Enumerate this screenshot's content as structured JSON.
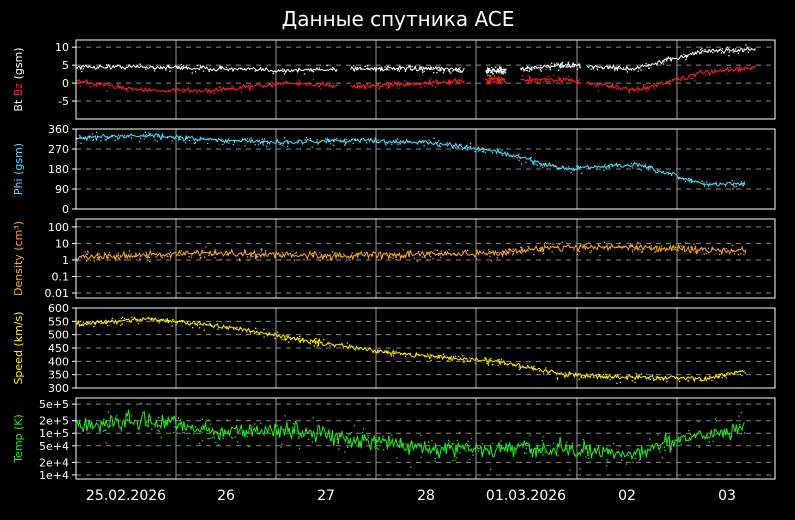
{
  "chart_data": {
    "type": "line",
    "title": "Данные спутника ACE",
    "background": "#000000",
    "grid": true,
    "x_tick_labels": [
      "25.02.2026",
      "26",
      "27",
      "28",
      "01.03.2026",
      "02",
      "03"
    ],
    "panels": [
      {
        "id": "bt-bz",
        "ylabel_parts": [
          {
            "text": "Bt",
            "color": "#ffffff"
          },
          {
            "text": " Bz",
            "color": "#ff2020"
          },
          {
            "text": " (gsm)",
            "color": "#ffffff"
          }
        ],
        "scale": "linear",
        "ylim": [
          -10,
          12
        ],
        "yticks": [
          10,
          5,
          0,
          -5
        ],
        "ytick_labels": [
          "10",
          "5",
          "0",
          "-5"
        ],
        "series": [
          {
            "label": "Bt",
            "color": "#ffffff",
            "approx_values": [
              4.5,
              4.5,
              4.0,
              3.5,
              4.0,
              4.0,
              3.5,
              5.0,
              4.0,
              9.0,
              9.5
            ]
          },
          {
            "label": "Bz",
            "color": "#ff2020",
            "approx_values": [
              0.5,
              -2.0,
              -2.0,
              0.0,
              -1.0,
              0.0,
              1.0,
              1.0,
              -2.0,
              3.0,
              5.0
            ]
          }
        ],
        "segments": [
          [
            0.0,
            2.62
          ],
          [
            2.75,
            3.9
          ],
          [
            4.1,
            4.3
          ],
          [
            4.45,
            5.05
          ],
          [
            5.12,
            6.8
          ]
        ]
      },
      {
        "id": "phi",
        "ylabel_parts": [
          {
            "text": "Phi (gsm)",
            "color": "#55ddff"
          }
        ],
        "scale": "linear",
        "ylim": [
          0,
          360
        ],
        "yticks": [
          360,
          270,
          180,
          90,
          0
        ],
        "ytick_labels": [
          "360",
          "270",
          "180",
          "90",
          "0"
        ],
        "series": [
          {
            "label": "Phi",
            "color": "#55ddff",
            "approx_values": [
              320,
              330,
              310,
              300,
              310,
              300,
              260,
              180,
              200,
              110,
              120
            ]
          }
        ]
      },
      {
        "id": "density",
        "ylabel_parts": [
          {
            "text": "Density (cm³)",
            "color": "#ffaa22"
          }
        ],
        "scale": "log",
        "ylim": [
          0.005,
          300
        ],
        "yticks": [
          100,
          10,
          1,
          0.1,
          0.01
        ],
        "ytick_labels": [
          "100",
          "10",
          "1",
          "0.1",
          "0.01"
        ],
        "series": [
          {
            "label": "Density",
            "color": "#ffaa22",
            "approx_values": [
              1.5,
              2.0,
              2.5,
              2.0,
              1.8,
              2.2,
              2.5,
              6.0,
              6.0,
              4.0,
              3.0
            ]
          }
        ]
      },
      {
        "id": "speed",
        "ylabel_parts": [
          {
            "text": "Speed (km/s)",
            "color": "#ffee00"
          }
        ],
        "scale": "linear",
        "ylim": [
          300,
          600
        ],
        "yticks": [
          600,
          550,
          500,
          450,
          400,
          350,
          300
        ],
        "ytick_labels": [
          "600",
          "550",
          "500",
          "450",
          "400",
          "350",
          "300"
        ],
        "series": [
          {
            "label": "Speed",
            "color": "#ffee00",
            "approx_values": [
              540,
              560,
              535,
              490,
              450,
              420,
              400,
              350,
              340,
              335,
              390
            ]
          }
        ]
      },
      {
        "id": "temp",
        "ylabel_parts": [
          {
            "text": "Temp (K)",
            "color": "#22ee22"
          }
        ],
        "scale": "log",
        "ylim": [
          8000,
          700000
        ],
        "yticks": [
          500000,
          200000,
          100000,
          50000,
          20000,
          10000
        ],
        "ytick_labels": [
          "5e+5",
          "2e+5",
          "1e+5",
          "5e+4",
          "2e+4",
          "1e+4"
        ],
        "series": [
          {
            "label": "Temp",
            "color": "#22ee22",
            "approx_values": [
              150000,
              200000,
              110000,
              120000,
              70000,
              45000,
              40000,
              40000,
              30000,
              100000,
              150000
            ]
          }
        ]
      }
    ]
  }
}
